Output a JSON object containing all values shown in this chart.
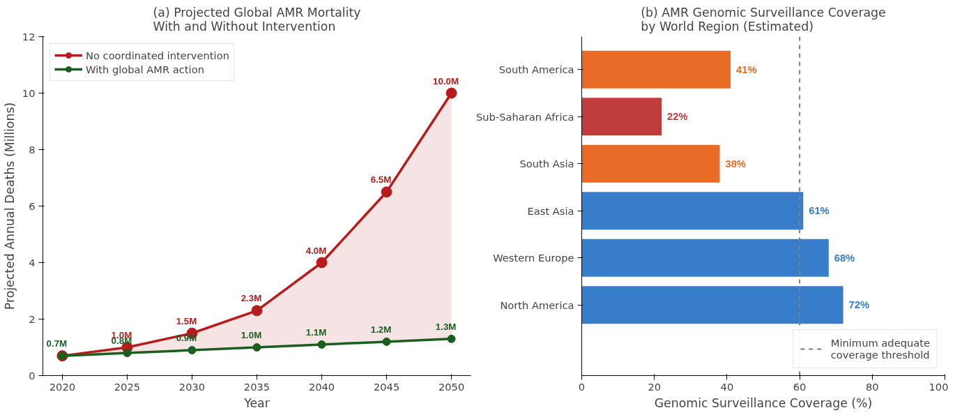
{
  "chart_data": [
    {
      "type": "line",
      "title": "(a) Projected Global AMR Mortality\nWith and Without Intervention",
      "xlabel": "Year",
      "ylabel": "Projected Annual Deaths (Millions)",
      "x": [
        2020,
        2025,
        2030,
        2035,
        2040,
        2045,
        2050
      ],
      "xlim": [
        2018.5,
        2051.5
      ],
      "xticks": [
        2020,
        2025,
        2030,
        2035,
        2040,
        2045,
        2050
      ],
      "ylim": [
        0,
        12
      ],
      "yticks": [
        0,
        2,
        4,
        6,
        8,
        10,
        12
      ],
      "grid": false,
      "legend": "top left",
      "marker": "circle",
      "line_style": "solid",
      "series": [
        {
          "name": "No coordinated intervention",
          "color": "#b71c1c",
          "values": [
            0.7,
            1.0,
            1.5,
            2.3,
            4.0,
            6.5,
            10.0
          ],
          "lower": [
            0.7,
            0.8,
            0.9,
            1.0,
            1.1,
            1.2,
            1.3
          ],
          "upper": [
            0.7,
            1.0,
            1.5,
            2.3,
            4.0,
            6.5,
            10.0
          ],
          "value_labels": [
            null,
            "1.0M",
            "1.5M",
            "2.3M",
            "4.0M",
            "6.5M",
            "10.0M"
          ]
        },
        {
          "name": "With global AMR action",
          "color": "#1b5e20",
          "values": [
            0.7,
            0.8,
            0.9,
            1.0,
            1.1,
            1.2,
            1.3
          ],
          "value_labels": [
            "0.7M",
            "0.8M",
            "0.9M",
            "1.0M",
            "1.1M",
            "1.2M",
            "1.3M"
          ]
        }
      ]
    },
    {
      "type": "bar",
      "orientation": "horizontal",
      "title": "(b) AMR Genomic Surveillance Coverage\nby World Region (Estimated)",
      "xlabel": "Genomic Surveillance Coverage (%)",
      "categories": [
        "South America",
        "Sub-Saharan Africa",
        "South Asia",
        "East Asia",
        "Western Europe",
        "North America"
      ],
      "values": [
        41,
        22,
        38,
        61,
        68,
        72
      ],
      "colors": [
        "#e96b28",
        "#c13d3d",
        "#e96b28",
        "#377dc9",
        "#377dc9",
        "#377dc9"
      ],
      "value_labels": [
        "41%",
        "22%",
        "38%",
        "61%",
        "68%",
        "72%"
      ],
      "xlim": [
        0,
        100
      ],
      "xticks": [
        0,
        20,
        40,
        60,
        80,
        100
      ],
      "grid": false,
      "legend": "bottom right",
      "ref_lines": [
        {
          "axis": "x",
          "value": 60,
          "label": "Minimum adequate\ncoverage threshold",
          "color": "#808080",
          "line_style": "dashed"
        }
      ]
    }
  ]
}
